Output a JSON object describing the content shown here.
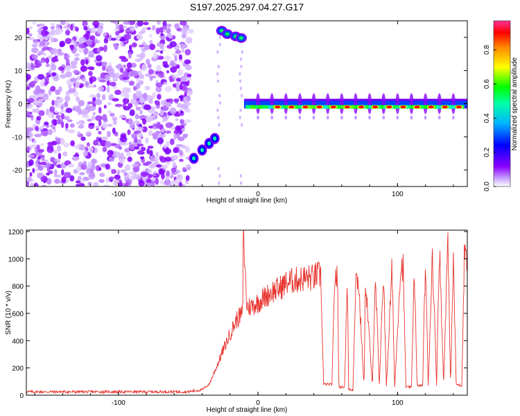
{
  "title": "S197.2025.297.04.27.G17",
  "chart_data": [
    {
      "type": "heatmap",
      "title": "S197.2025.297.04.27.G17",
      "xlabel": "Height of straight line (km)",
      "ylabel": "Frequency (Hz)",
      "xlim": [
        -166,
        150
      ],
      "ylim": [
        -25,
        25
      ],
      "xticks": [
        -100,
        0,
        100
      ],
      "yticks": [
        -20,
        -10,
        0,
        10,
        20
      ],
      "colorbar": {
        "label": "Normalized spectral amplitude",
        "range": [
          0,
          0.97
        ],
        "ticks": [
          "0.0",
          "0.2",
          "0.4",
          "0.6",
          "0.8"
        ],
        "colors": [
          "#ffffff",
          "#8a00ff",
          "#0000ff",
          "#00c8ff",
          "#00ff00",
          "#ffff00",
          "#ff8800",
          "#ff0000",
          "#ff3399"
        ]
      },
      "features": [
        {
          "name": "noise",
          "x_range": [
            -166,
            -48
          ],
          "y_range": [
            -25,
            25
          ],
          "amplitude": 0.05
        },
        {
          "name": "tone-rising",
          "x": [
            -46,
            -40,
            -35,
            -31
          ],
          "y": [
            -16.5,
            -14,
            -12,
            -10.5
          ],
          "amplitude": 0.25
        },
        {
          "name": "tone-high",
          "x": [
            -26,
            -22,
            -16,
            -12
          ],
          "y": [
            22,
            21,
            20.3,
            19.8
          ],
          "amplitude": 0.3
        },
        {
          "name": "tone-zero",
          "x_range": [
            -10,
            150
          ],
          "y": [
            0,
            -1.5
          ],
          "amplitude": 0.95
        }
      ]
    },
    {
      "type": "line",
      "xlabel": "Height of straight line (km)",
      "ylabel": "SNR (10 * v/v)",
      "xlim": [
        -166,
        150
      ],
      "ylim": [
        0,
        1210
      ],
      "xticks": [
        -100,
        0,
        100
      ],
      "yticks": [
        0,
        200,
        400,
        600,
        800,
        1000,
        1200
      ],
      "series": [
        {
          "name": "SNR",
          "color": "#e8322c",
          "x": [
            -166,
            -120,
            -80,
            -50,
            -40,
            -35,
            -30,
            -25,
            -20,
            -15,
            -11,
            -10.5,
            -8,
            -5,
            0,
            5,
            10,
            15,
            20,
            25,
            30,
            35,
            40,
            42,
            45,
            47,
            53,
            55,
            57,
            58,
            62,
            64,
            65,
            68,
            70,
            72,
            76,
            77,
            82,
            84,
            87,
            90,
            92,
            96,
            98,
            102,
            104,
            106,
            110,
            112,
            114,
            118,
            120,
            122,
            125,
            128,
            130,
            133,
            136,
            138,
            140,
            142,
            146,
            148,
            150
          ],
          "y": [
            25,
            25,
            25,
            25,
            40,
            80,
            200,
            330,
            450,
            560,
            600,
            1200,
            650,
            650,
            680,
            720,
            760,
            780,
            820,
            840,
            850,
            860,
            860,
            880,
            880,
            80,
            80,
            880,
            850,
            60,
            60,
            880,
            40,
            40,
            850,
            850,
            60,
            860,
            60,
            900,
            60,
            920,
            60,
            920,
            60,
            920,
            950,
            60,
            60,
            960,
            70,
            70,
            1000,
            70,
            1050,
            80,
            1100,
            80,
            1150,
            90,
            1000,
            80,
            70,
            1100,
            1020
          ]
        }
      ]
    }
  ]
}
